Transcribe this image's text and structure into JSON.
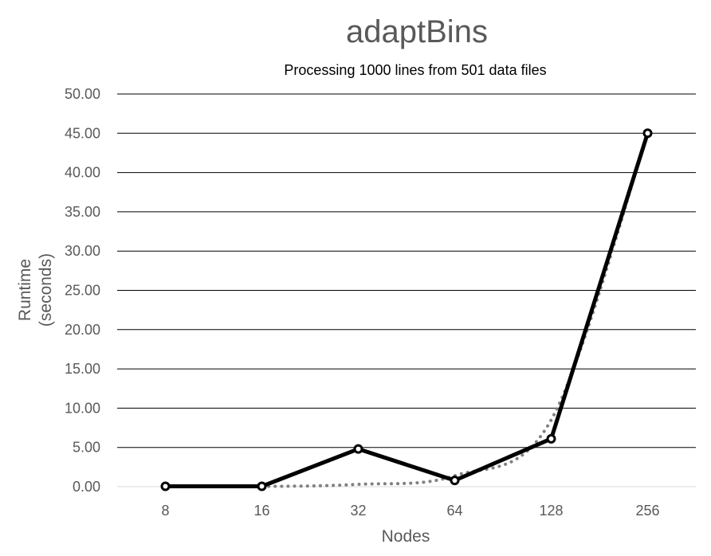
{
  "chart_data": {
    "type": "line",
    "title": "adaptBins",
    "subtitle": "Processing 1000 lines from 501 data files",
    "xlabel": "Nodes",
    "ylabel_lines": [
      "Runtime",
      "(seconds)"
    ],
    "categories": [
      "8",
      "16",
      "32",
      "64",
      "128",
      "256"
    ],
    "series": [
      {
        "values": [
          0.05,
          0.05,
          4.8,
          0.8,
          6.1,
          45.0
        ],
        "color": "#000000",
        "style": "solid",
        "markers": true
      },
      {
        "type": "trendline",
        "values": [
          0.0,
          0.03,
          0.3,
          1.4,
          8.5,
          45.0
        ],
        "color": "#808080",
        "style": "dotted"
      }
    ],
    "ylim": [
      0,
      50
    ],
    "yticks": [
      "0.00",
      "5.00",
      "10.00",
      "15.00",
      "20.00",
      "25.00",
      "30.00",
      "35.00",
      "40.00",
      "45.00",
      "50.00"
    ],
    "grid": true,
    "legend": "none"
  }
}
